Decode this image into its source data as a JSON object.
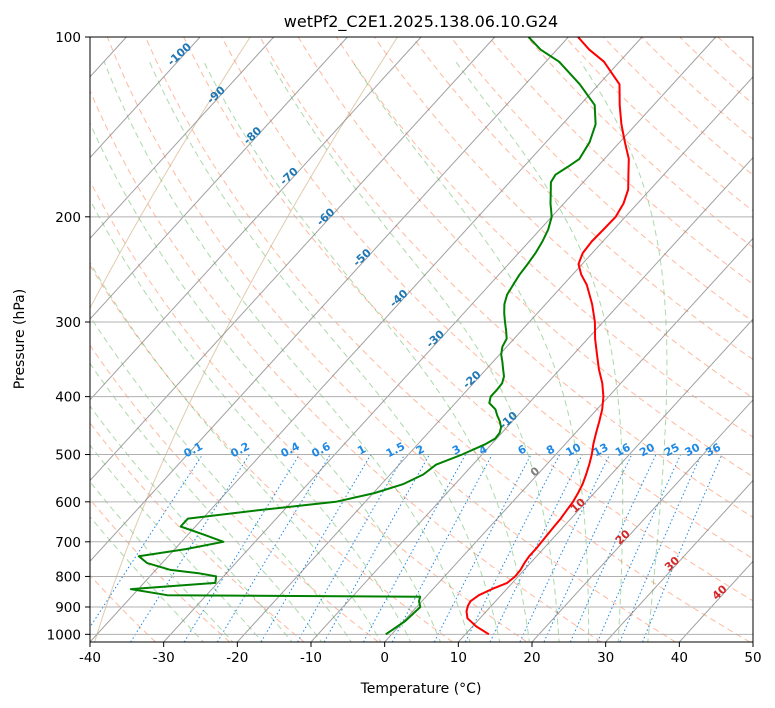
{
  "chart_data": {
    "type": "skew-t",
    "title": "wetPf2_C2E1.2025.138.06.10.G24",
    "xlabel": "Temperature (°C)",
    "ylabel": "Pressure (hPa)",
    "xlim": [
      -40,
      50
    ],
    "ylim": [
      1030,
      100
    ],
    "x_ticks": [
      -40,
      -30,
      -20,
      -10,
      0,
      10,
      20,
      30,
      40,
      50
    ],
    "y_ticks": [
      1000,
      900,
      800,
      700,
      600,
      500,
      400,
      300,
      200,
      100
    ],
    "grid": true,
    "series": [
      {
        "kind": "temperature",
        "color": "#ff0000",
        "points": [
          [
            1000,
            13.2
          ],
          [
            970,
            10.5
          ],
          [
            940,
            8.3
          ],
          [
            915,
            7.3
          ],
          [
            895,
            6.8
          ],
          [
            880,
            6.6
          ],
          [
            860,
            7.0
          ],
          [
            840,
            8.0
          ],
          [
            820,
            9.3
          ],
          [
            800,
            9.6
          ],
          [
            780,
            9.5
          ],
          [
            760,
            9.2
          ],
          [
            740,
            9.0
          ],
          [
            720,
            9.0
          ],
          [
            700,
            8.9
          ],
          [
            680,
            8.8
          ],
          [
            660,
            8.7
          ],
          [
            640,
            8.6
          ],
          [
            620,
            8.4
          ],
          [
            600,
            8.2
          ],
          [
            580,
            7.8
          ],
          [
            560,
            7.3
          ],
          [
            540,
            6.6
          ],
          [
            520,
            5.8
          ],
          [
            500,
            4.9
          ],
          [
            480,
            3.8
          ],
          [
            460,
            2.8
          ],
          [
            440,
            1.8
          ],
          [
            420,
            0.7
          ],
          [
            400,
            -0.7
          ],
          [
            380,
            -2.5
          ],
          [
            360,
            -4.7
          ],
          [
            340,
            -6.8
          ],
          [
            320,
            -9.0
          ],
          [
            300,
            -11.1
          ],
          [
            280,
            -13.7
          ],
          [
            260,
            -16.8
          ],
          [
            250,
            -18.8
          ],
          [
            240,
            -20.5
          ],
          [
            230,
            -21.3
          ],
          [
            220,
            -21.5
          ],
          [
            210,
            -21.4
          ],
          [
            200,
            -21.3
          ],
          [
            190,
            -21.9
          ],
          [
            180,
            -23.0
          ],
          [
            170,
            -24.8
          ],
          [
            160,
            -26.7
          ],
          [
            150,
            -29.3
          ],
          [
            140,
            -32.0
          ],
          [
            130,
            -34.6
          ],
          [
            120,
            -37.2
          ],
          [
            115,
            -39.6
          ],
          [
            110,
            -42.1
          ],
          [
            105,
            -45.6
          ],
          [
            100,
            -48.7
          ]
        ]
      },
      {
        "kind": "dewpoint",
        "color": "#008000",
        "points": [
          [
            1000,
            -0.8
          ],
          [
            950,
            0.2
          ],
          [
            900,
            0.5
          ],
          [
            880,
            -0.4
          ],
          [
            865,
            -0.8
          ],
          [
            860,
            -35.3
          ],
          [
            840,
            -41.0
          ],
          [
            820,
            -30.3
          ],
          [
            800,
            -31.0
          ],
          [
            790,
            -33.8
          ],
          [
            780,
            -38.0
          ],
          [
            760,
            -42.0
          ],
          [
            740,
            -44.0
          ],
          [
            720,
            -38.5
          ],
          [
            700,
            -34.3
          ],
          [
            680,
            -38.0
          ],
          [
            660,
            -42.0
          ],
          [
            640,
            -42.0
          ],
          [
            620,
            -33.5
          ],
          [
            600,
            -24.0
          ],
          [
            580,
            -19.8
          ],
          [
            560,
            -17.0
          ],
          [
            540,
            -15.5
          ],
          [
            520,
            -15.0
          ],
          [
            500,
            -12.7
          ],
          [
            480,
            -10.8
          ],
          [
            470,
            -10.2
          ],
          [
            460,
            -10.3
          ],
          [
            450,
            -10.8
          ],
          [
            440,
            -11.7
          ],
          [
            430,
            -12.8
          ],
          [
            420,
            -13.8
          ],
          [
            410,
            -15.4
          ],
          [
            400,
            -16.0
          ],
          [
            390,
            -16.0
          ],
          [
            380,
            -16.1
          ],
          [
            370,
            -16.7
          ],
          [
            360,
            -17.7
          ],
          [
            350,
            -18.7
          ],
          [
            340,
            -19.8
          ],
          [
            330,
            -20.6
          ],
          [
            320,
            -21.0
          ],
          [
            310,
            -22.1
          ],
          [
            300,
            -23.3
          ],
          [
            290,
            -24.5
          ],
          [
            280,
            -25.6
          ],
          [
            270,
            -26.4
          ],
          [
            260,
            -26.8
          ],
          [
            250,
            -27.2
          ],
          [
            240,
            -27.4
          ],
          [
            230,
            -27.7
          ],
          [
            220,
            -28.2
          ],
          [
            210,
            -28.9
          ],
          [
            200,
            -30.0
          ],
          [
            190,
            -31.8
          ],
          [
            180,
            -33.5
          ],
          [
            175,
            -34.4
          ],
          [
            170,
            -34.7
          ],
          [
            165,
            -34.0
          ],
          [
            160,
            -33.4
          ],
          [
            150,
            -34.1
          ],
          [
            140,
            -35.5
          ],
          [
            130,
            -38.0
          ],
          [
            120,
            -42.6
          ],
          [
            110,
            -48.2
          ],
          [
            105,
            -52.2
          ],
          [
            100,
            -55.4
          ]
        ]
      }
    ],
    "isotherm_labels": [
      "-100",
      "-90",
      "-80",
      "-70",
      "-60",
      "-50",
      "-40",
      "-30",
      "-20",
      "-10"
    ],
    "mixing_ratio_labels": [
      "0.1",
      "0.2",
      "0.4",
      "0.6",
      "1",
      "1.5",
      "2",
      "3",
      "4",
      "6",
      "8",
      "10",
      "13",
      "16",
      "20",
      "25",
      "30",
      "36"
    ],
    "warm_isotherm_labels": [
      "0",
      "10",
      "20",
      "30",
      "40"
    ]
  }
}
